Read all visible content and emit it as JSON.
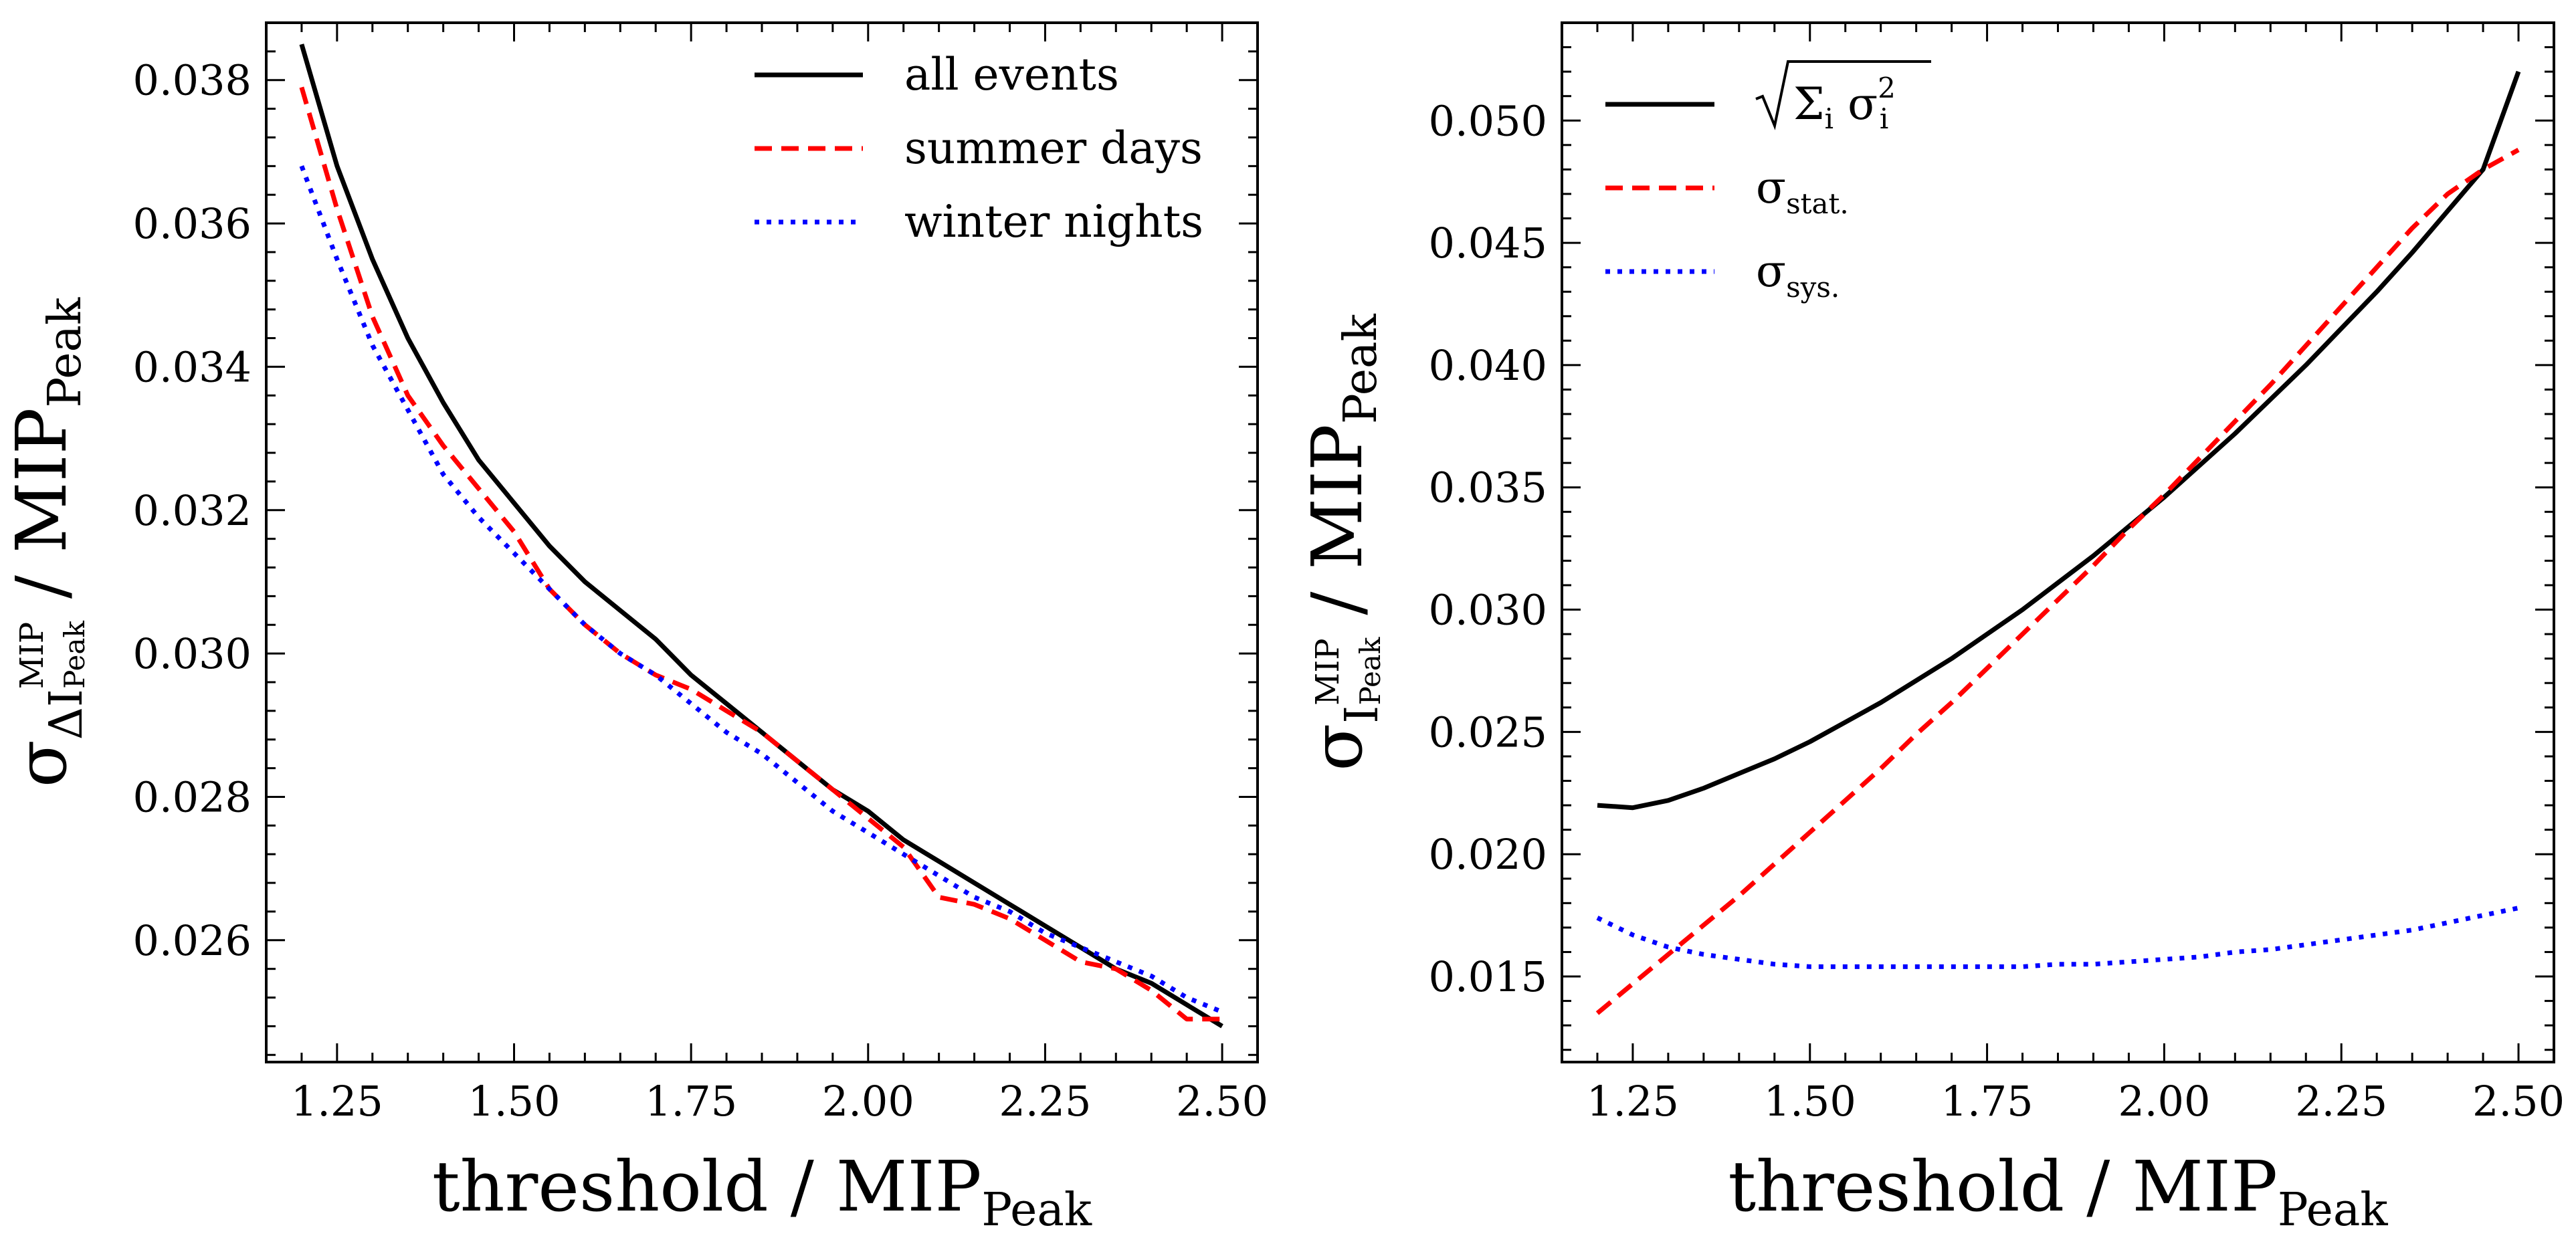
{
  "chart_data": [
    {
      "type": "line",
      "xlabel": {
        "text": "threshold / MIP",
        "sub": "Peak"
      },
      "ylabel": {
        "sigma": "σ",
        "delta": "ΔI",
        "sup": "MIP",
        "sub": "Peak",
        "rest": "/ MIP",
        "rest_sub": "Peak"
      },
      "xlim": [
        1.15,
        2.55
      ],
      "ylim": [
        0.0243,
        0.0388
      ],
      "xticks": [
        "1.25",
        "1.50",
        "1.75",
        "2.00",
        "2.25",
        "2.50"
      ],
      "yticks": [
        "0.026",
        "0.028",
        "0.030",
        "0.032",
        "0.034",
        "0.036",
        "0.038"
      ],
      "grid": false,
      "legend_position": "top-right",
      "series": [
        {
          "name": "all events",
          "color": "#000000",
          "dash": "solid",
          "x": [
            1.2,
            1.25,
            1.3,
            1.35,
            1.4,
            1.45,
            1.5,
            1.55,
            1.6,
            1.65,
            1.7,
            1.75,
            1.8,
            1.85,
            1.9,
            1.95,
            2.0,
            2.05,
            2.1,
            2.15,
            2.2,
            2.25,
            2.3,
            2.35,
            2.4,
            2.45,
            2.5
          ],
          "y": [
            0.0385,
            0.0368,
            0.0355,
            0.0344,
            0.0335,
            0.0327,
            0.0321,
            0.0315,
            0.031,
            0.0306,
            0.0302,
            0.0297,
            0.0293,
            0.0289,
            0.0285,
            0.0281,
            0.0278,
            0.0274,
            0.0271,
            0.0268,
            0.0265,
            0.0262,
            0.0259,
            0.0256,
            0.0254,
            0.0251,
            0.0248
          ]
        },
        {
          "name": "summer days",
          "color": "#ff0000",
          "dash": "dashed",
          "x": [
            1.2,
            1.25,
            1.3,
            1.35,
            1.4,
            1.45,
            1.5,
            1.55,
            1.6,
            1.65,
            1.7,
            1.75,
            1.8,
            1.85,
            1.9,
            1.95,
            2.0,
            2.05,
            2.1,
            2.15,
            2.2,
            2.25,
            2.3,
            2.35,
            2.4,
            2.45,
            2.5
          ],
          "y": [
            0.0379,
            0.0362,
            0.0347,
            0.0336,
            0.0329,
            0.0323,
            0.0317,
            0.0309,
            0.0304,
            0.03,
            0.0297,
            0.0295,
            0.0292,
            0.0289,
            0.0285,
            0.0281,
            0.0277,
            0.0273,
            0.0266,
            0.0265,
            0.0263,
            0.026,
            0.0257,
            0.0256,
            0.0253,
            0.0249,
            0.0249
          ]
        },
        {
          "name": "winter nights",
          "color": "#0000ff",
          "dash": "dotted",
          "x": [
            1.2,
            1.25,
            1.3,
            1.35,
            1.4,
            1.45,
            1.5,
            1.55,
            1.6,
            1.65,
            1.7,
            1.75,
            1.8,
            1.85,
            1.9,
            1.95,
            2.0,
            2.05,
            2.1,
            2.15,
            2.2,
            2.25,
            2.3,
            2.35,
            2.4,
            2.45,
            2.5
          ],
          "y": [
            0.0368,
            0.0355,
            0.0343,
            0.0334,
            0.0325,
            0.0319,
            0.0314,
            0.0309,
            0.0304,
            0.03,
            0.0297,
            0.0293,
            0.0289,
            0.0286,
            0.0282,
            0.0278,
            0.0275,
            0.0272,
            0.0269,
            0.0266,
            0.0264,
            0.0261,
            0.0259,
            0.0257,
            0.0255,
            0.0252,
            0.025
          ]
        }
      ]
    },
    {
      "type": "line",
      "xlabel": {
        "text": "threshold / MIP",
        "sub": "Peak"
      },
      "ylabel": {
        "sigma": "σ",
        "delta": "I",
        "sup": "MIP",
        "sub": "Peak",
        "rest": "/ MIP",
        "rest_sub": "Peak"
      },
      "xlim": [
        1.15,
        2.55
      ],
      "ylim": [
        0.0115,
        0.054
      ],
      "xticks": [
        "1.25",
        "1.50",
        "1.75",
        "2.00",
        "2.25",
        "2.50"
      ],
      "yticks": [
        "0.015",
        "0.020",
        "0.025",
        "0.030",
        "0.035",
        "0.040",
        "0.045",
        "0.050"
      ],
      "grid": false,
      "legend_position": "top-left",
      "series": [
        {
          "name": "√(Σᵢ σᵢ²)",
          "legend_parts": {
            "sigma_sum": "Σ",
            "i": "i",
            "sigma": "σ",
            "sup": "2"
          },
          "color": "#000000",
          "dash": "solid",
          "x": [
            1.2,
            1.25,
            1.3,
            1.35,
            1.4,
            1.45,
            1.5,
            1.55,
            1.6,
            1.65,
            1.7,
            1.75,
            1.8,
            1.85,
            1.9,
            1.95,
            2.0,
            2.05,
            2.1,
            2.15,
            2.2,
            2.25,
            2.3,
            2.35,
            2.4,
            2.45,
            2.5
          ],
          "y": [
            0.022,
            0.0219,
            0.0222,
            0.0227,
            0.0233,
            0.0239,
            0.0246,
            0.0254,
            0.0262,
            0.0271,
            0.028,
            0.029,
            0.03,
            0.0311,
            0.0322,
            0.0334,
            0.0346,
            0.0359,
            0.0372,
            0.0386,
            0.04,
            0.0415,
            0.043,
            0.0446,
            0.0463,
            0.048,
            0.052
          ]
        },
        {
          "name": "σstat.",
          "legend_parts": {
            "sigma": "σ",
            "sub": "stat."
          },
          "color": "#ff0000",
          "dash": "dashed",
          "x": [
            1.2,
            1.25,
            1.3,
            1.35,
            1.4,
            1.45,
            1.5,
            1.55,
            1.6,
            1.65,
            1.7,
            1.75,
            1.8,
            1.85,
            1.9,
            1.95,
            2.0,
            2.05,
            2.1,
            2.15,
            2.2,
            2.25,
            2.3,
            2.35,
            2.4,
            2.45,
            2.5
          ],
          "y": [
            0.0135,
            0.0147,
            0.0159,
            0.0171,
            0.0183,
            0.0196,
            0.0209,
            0.0222,
            0.0235,
            0.0249,
            0.0262,
            0.0276,
            0.029,
            0.0304,
            0.0318,
            0.0333,
            0.0347,
            0.0362,
            0.0377,
            0.0392,
            0.0408,
            0.0424,
            0.044,
            0.0456,
            0.047,
            0.048,
            0.0488
          ]
        },
        {
          "name": "σsys.",
          "legend_parts": {
            "sigma": "σ",
            "sub": "sys."
          },
          "color": "#0000ff",
          "dash": "dotted",
          "x": [
            1.2,
            1.25,
            1.3,
            1.35,
            1.4,
            1.45,
            1.5,
            1.55,
            1.6,
            1.65,
            1.7,
            1.75,
            1.8,
            1.85,
            1.9,
            1.95,
            2.0,
            2.05,
            2.1,
            2.15,
            2.2,
            2.25,
            2.3,
            2.35,
            2.4,
            2.45,
            2.5
          ],
          "y": [
            0.0174,
            0.0167,
            0.0162,
            0.0159,
            0.0157,
            0.0155,
            0.0154,
            0.0154,
            0.0154,
            0.0154,
            0.0154,
            0.0154,
            0.0154,
            0.0155,
            0.0155,
            0.0156,
            0.0157,
            0.0158,
            0.016,
            0.0161,
            0.0163,
            0.0165,
            0.0167,
            0.0169,
            0.0172,
            0.0175,
            0.0178
          ]
        }
      ]
    }
  ]
}
